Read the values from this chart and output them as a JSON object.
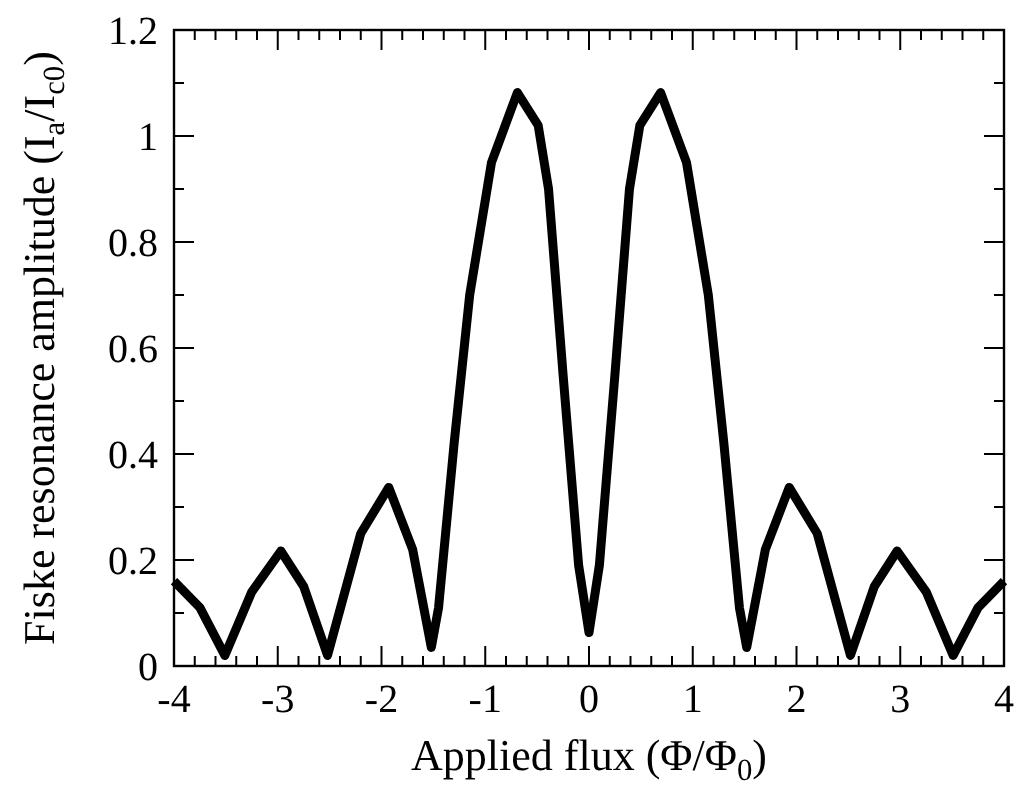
{
  "chart_data": {
    "type": "line",
    "xlabel": "Applied flux (Φ/Φ$_{0}$)",
    "ylabel": "Fiske resonance amplitude (I$_{a}$/I$_{c0}$)",
    "x": [
      -4,
      -3.75,
      -3.51,
      -3.25,
      -2.97,
      -2.75,
      -2.52,
      -2.2,
      -1.93,
      -1.7,
      -1.52,
      -1.45,
      -1.3,
      -1.15,
      -0.94,
      -0.69,
      -0.49,
      -0.39,
      -0.25,
      -0.1,
      0,
      0.1,
      0.25,
      0.39,
      0.49,
      0.69,
      0.94,
      1.15,
      1.3,
      1.45,
      1.52,
      1.7,
      1.93,
      2.2,
      2.52,
      2.75,
      2.97,
      3.25,
      3.51,
      3.75,
      4
    ],
    "series": [
      {
        "color": "#000000",
        "values": [
          0.16,
          0.11,
          0.02,
          0.14,
          0.217,
          0.15,
          0.02,
          0.25,
          0.337,
          0.22,
          0.035,
          0.11,
          0.42,
          0.7,
          0.95,
          1.082,
          1.02,
          0.9,
          0.55,
          0.19,
          0.063,
          0.19,
          0.55,
          0.9,
          1.02,
          1.082,
          0.95,
          0.7,
          0.42,
          0.11,
          0.035,
          0.22,
          0.337,
          0.25,
          0.02,
          0.15,
          0.217,
          0.14,
          0.02,
          0.11,
          0.16
        ]
      }
    ],
    "xlim": [
      -4,
      4
    ],
    "ylim": [
      0,
      1.2
    ],
    "xticks": [
      -4,
      {
        "value": -3.8,
        "label": null
      },
      {
        "value": -3.6,
        "label": null
      },
      {
        "value": -3.4,
        "label": null
      },
      {
        "value": -3.2,
        "label": null
      },
      -3,
      {
        "value": -2.8,
        "label": null
      },
      {
        "value": -2.6,
        "label": null
      },
      {
        "value": -2.4,
        "label": null
      },
      {
        "value": -2.2,
        "label": null
      },
      -2,
      {
        "value": -1.8,
        "label": null
      },
      {
        "value": -1.6,
        "label": null
      },
      {
        "value": -1.4,
        "label": null
      },
      {
        "value": -1.2,
        "label": null
      },
      -1,
      {
        "value": -0.8,
        "label": null
      },
      {
        "value": -0.6,
        "label": null
      },
      {
        "value": -0.4,
        "label": null
      },
      {
        "value": -0.2,
        "label": null
      },
      0,
      {
        "value": 0.2,
        "label": null
      },
      {
        "value": 0.4,
        "label": null
      },
      {
        "value": 0.6,
        "label": null
      },
      {
        "value": 0.8,
        "label": null
      },
      1,
      {
        "value": 1.2,
        "label": null
      },
      {
        "value": 1.4,
        "label": null
      },
      {
        "value": 1.6,
        "label": null
      },
      {
        "value": 1.8,
        "label": null
      },
      2,
      {
        "value": 2.2,
        "label": null
      },
      {
        "value": 2.4,
        "label": null
      },
      {
        "value": 2.6,
        "label": null
      },
      {
        "value": 2.8,
        "label": null
      },
      3,
      {
        "value": 3.2,
        "label": null
      },
      {
        "value": 3.4,
        "label": null
      },
      {
        "value": 3.6,
        "label": null
      },
      {
        "value": 3.8,
        "label": null
      },
      4
    ],
    "yticks": [
      0,
      {
        "value": 0.1,
        "label": null
      },
      0.2,
      {
        "value": 0.3,
        "label": null
      },
      0.4,
      {
        "value": 0.5,
        "label": null
      },
      0.6,
      {
        "value": 0.7,
        "label": null
      },
      0.8,
      {
        "value": 0.9,
        "label": null
      },
      1,
      {
        "value": 1.1,
        "label": null
      },
      1.2
    ],
    "grid": false,
    "marker": "none",
    "line_style": "solid"
  }
}
